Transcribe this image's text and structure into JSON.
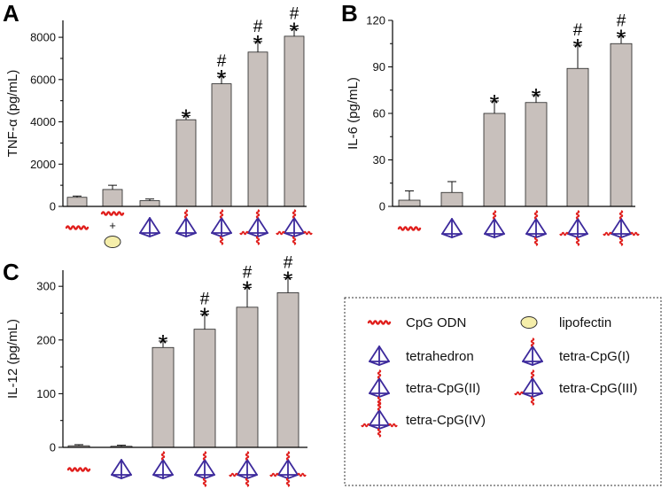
{
  "colors": {
    "bar": "#c8c0bc",
    "bar_stroke": "#222222",
    "axis": "#000000",
    "dna": "#e0201e",
    "tetra": "#3d2a9c",
    "lipo_fill": "#f5eeaa",
    "lipo_stroke": "#333333"
  },
  "chart_data": [
    {
      "panel": "A",
      "type": "bar",
      "ylabel": "TNF-α (pg/mL)",
      "ylim": [
        0,
        8800
      ],
      "yticks": [
        "0",
        "2000",
        "4000",
        "6000",
        "8000"
      ],
      "ytick_values": [
        0,
        2000,
        4000,
        6000,
        8000
      ],
      "categories": [
        "CpG ODN",
        "CpG ODN + lipofectin",
        "tetrahedron",
        "tetra-CpG(I)",
        "tetra-CpG(II)",
        "tetra-CpG(III)",
        "tetra-CpG(IV)"
      ],
      "icons": [
        "cpg",
        "cpg+lipo",
        "t0",
        "t1",
        "t2",
        "t3",
        "t4"
      ],
      "values": [
        430,
        800,
        270,
        4100,
        5800,
        7300,
        8050
      ],
      "errors": [
        60,
        200,
        80,
        200,
        350,
        500,
        350
      ],
      "annotations": [
        "",
        "",
        "",
        "*",
        "*#",
        "*#",
        "*#"
      ]
    },
    {
      "panel": "B",
      "type": "bar",
      "ylabel": "IL-6 (pg/mL)",
      "ylim": [
        0,
        120
      ],
      "yticks": [
        "0",
        "30",
        "60",
        "90",
        "120"
      ],
      "ytick_values": [
        0,
        30,
        60,
        90,
        120
      ],
      "categories": [
        "CpG ODN",
        "tetrahedron",
        "tetra-CpG(I)",
        "tetra-CpG(II)",
        "tetra-CpG(III)",
        "tetra-CpG(IV)"
      ],
      "icons": [
        "cpg",
        "t0",
        "t1",
        "t2",
        "t3",
        "t4"
      ],
      "values": [
        4,
        9,
        60,
        67,
        89,
        105
      ],
      "errors": [
        6,
        7,
        8,
        5,
        15,
        5
      ],
      "annotations": [
        "",
        "",
        "*",
        "*",
        "*#",
        "*#"
      ]
    },
    {
      "panel": "C",
      "type": "bar",
      "ylabel": "IL-12 (pg/mL)",
      "ylim": [
        0,
        330
      ],
      "yticks": [
        "0",
        "100",
        "200",
        "300"
      ],
      "ytick_values": [
        0,
        100,
        200,
        300
      ],
      "categories": [
        "CpG ODN",
        "tetrahedron",
        "tetra-CpG(I)",
        "tetra-CpG(II)",
        "tetra-CpG(III)",
        "tetra-CpG(IV)"
      ],
      "icons": [
        "cpg",
        "t0",
        "t1",
        "t2",
        "t3",
        "t4"
      ],
      "values": [
        3,
        2,
        186,
        220,
        261,
        288
      ],
      "errors": [
        2,
        2,
        12,
        28,
        37,
        28
      ],
      "annotations": [
        "",
        "",
        "*",
        "*#",
        "*#",
        "*#"
      ]
    }
  ],
  "legend": [
    {
      "icon": "cpg",
      "label": "CpG ODN"
    },
    {
      "icon": "lipo",
      "label": "lipofectin"
    },
    {
      "icon": "t0",
      "label": "tetrahedron"
    },
    {
      "icon": "t1",
      "label": "tetra-CpG(I)"
    },
    {
      "icon": "t2",
      "label": "tetra-CpG(II)"
    },
    {
      "icon": "t3",
      "label": "tetra-CpG(III)"
    },
    {
      "icon": "t4",
      "label": "tetra-CpG(IV)"
    }
  ]
}
